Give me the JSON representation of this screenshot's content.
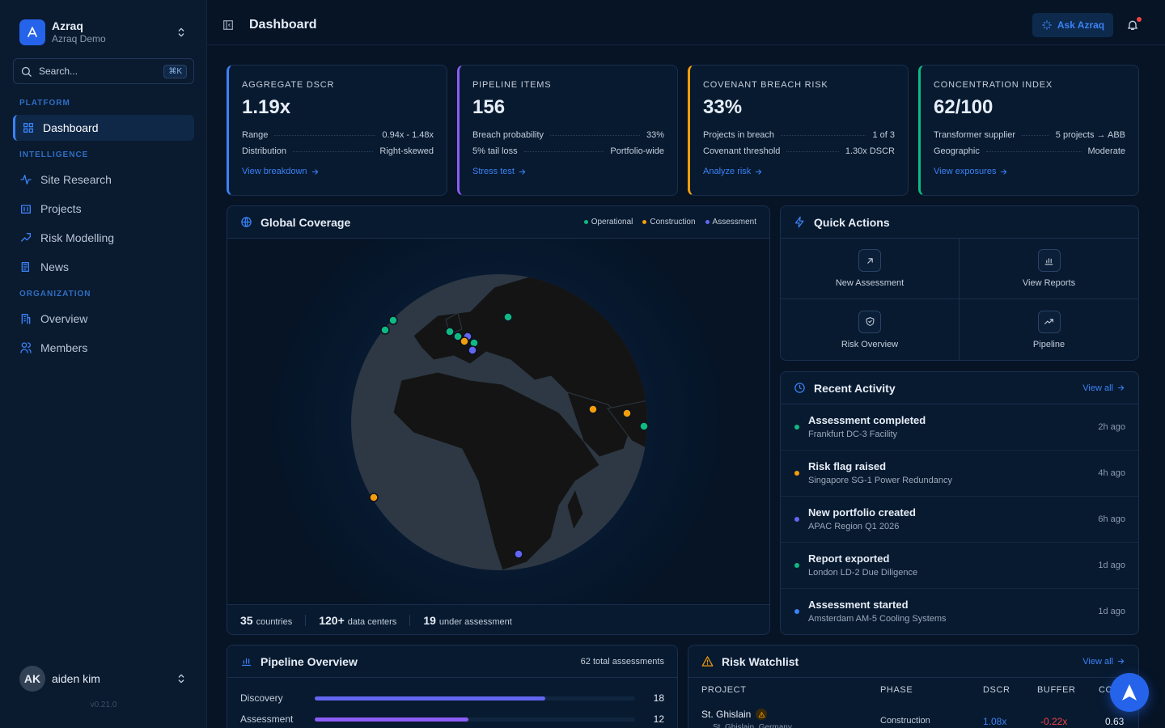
{
  "sidebar": {
    "brand": "Azraq",
    "org": "Azraq Demo",
    "search": "Search...",
    "shortcut": "⌘K",
    "sections": [
      {
        "label": "PLATFORM",
        "items": [
          "Dashboard"
        ]
      },
      {
        "label": "INTELLIGENCE",
        "items": [
          "Site Research",
          "Projects",
          "Risk Modelling",
          "News"
        ]
      },
      {
        "label": "ORGANIZATION",
        "items": [
          "Overview",
          "Members"
        ]
      }
    ],
    "user": {
      "initials": "AK",
      "name": "aiden kim"
    },
    "version": "v0.21.0"
  },
  "header": {
    "title": "Dashboard",
    "ask": "Ask Azraq"
  },
  "kpis": [
    {
      "label": "AGGREGATE DSCR",
      "value": "1.19x",
      "color": "#3b82f6",
      "rows": [
        [
          "Range",
          "0.94x - 1.48x"
        ],
        [
          "Distribution",
          "Right-skewed"
        ]
      ],
      "link": "View breakdown"
    },
    {
      "label": "PIPELINE ITEMS",
      "value": "156",
      "color": "#8b5cf6",
      "rows": [
        [
          "Breach probability",
          "33%"
        ],
        [
          "5% tail loss",
          "Portfolio-wide"
        ]
      ],
      "link": "Stress test"
    },
    {
      "label": "COVENANT BREACH RISK",
      "value": "33%",
      "color": "#f59e0b",
      "rows": [
        [
          "Projects in breach",
          "1 of 3"
        ],
        [
          "Covenant threshold",
          "1.30x DSCR"
        ]
      ],
      "link": "Analyze risk"
    },
    {
      "label": "CONCENTRATION INDEX",
      "value": "62/100",
      "color": "#10b981",
      "rows": [
        [
          "Transformer supplier",
          "5 projects → ABB"
        ],
        [
          "Geographic",
          "Moderate"
        ]
      ],
      "link": "View exposures"
    }
  ],
  "coverage": {
    "title": "Global Coverage",
    "legend": [
      {
        "name": "Operational",
        "color": "#10b981"
      },
      {
        "name": "Construction",
        "color": "#f59e0b"
      },
      {
        "name": "Assessment",
        "color": "#6366f1"
      }
    ],
    "stats": [
      {
        "value": "35",
        "label": "countries"
      },
      {
        "value": "120+",
        "label": "data centers"
      },
      {
        "value": "19",
        "label": "under assessment"
      }
    ]
  },
  "quick_actions": {
    "title": "Quick Actions",
    "items": [
      "New Assessment",
      "View Reports",
      "Risk Overview",
      "Pipeline"
    ]
  },
  "activity": {
    "title": "Recent Activity",
    "view_all": "View all",
    "items": [
      {
        "title": "Assessment completed",
        "subtitle": "Frankfurt DC-3 Facility",
        "time": "2h ago",
        "color": "#10b981"
      },
      {
        "title": "Risk flag raised",
        "subtitle": "Singapore SG-1 Power Redundancy",
        "time": "4h ago",
        "color": "#f59e0b"
      },
      {
        "title": "New portfolio created",
        "subtitle": "APAC Region Q1 2026",
        "time": "6h ago",
        "color": "#6366f1"
      },
      {
        "title": "Report exported",
        "subtitle": "London LD-2 Due Diligence",
        "time": "1d ago",
        "color": "#10b981"
      },
      {
        "title": "Assessment started",
        "subtitle": "Amsterdam AM-5 Cooling Systems",
        "time": "1d ago",
        "color": "#3b82f6"
      }
    ]
  },
  "pipeline": {
    "title": "Pipeline Overview",
    "total": "62 total assessments",
    "xlim": [
      0,
      25
    ],
    "categories": [
      "Discovery",
      "Assessment"
    ],
    "values": [
      18,
      12
    ],
    "colors": [
      "#6366f1",
      "#8b5cf6"
    ]
  },
  "watchlist": {
    "title": "Risk Watchlist",
    "view_all": "View all",
    "columns": [
      "PROJECT",
      "PHASE",
      "DSCR",
      "BUFFER",
      "CO"
    ],
    "rows": [
      {
        "project": "St. Ghislain",
        "location": "St. Ghislain, Germany",
        "phase": "Construction",
        "dscr": "1.08x",
        "buffer": "-0.22x",
        "co": "0.63"
      }
    ]
  }
}
